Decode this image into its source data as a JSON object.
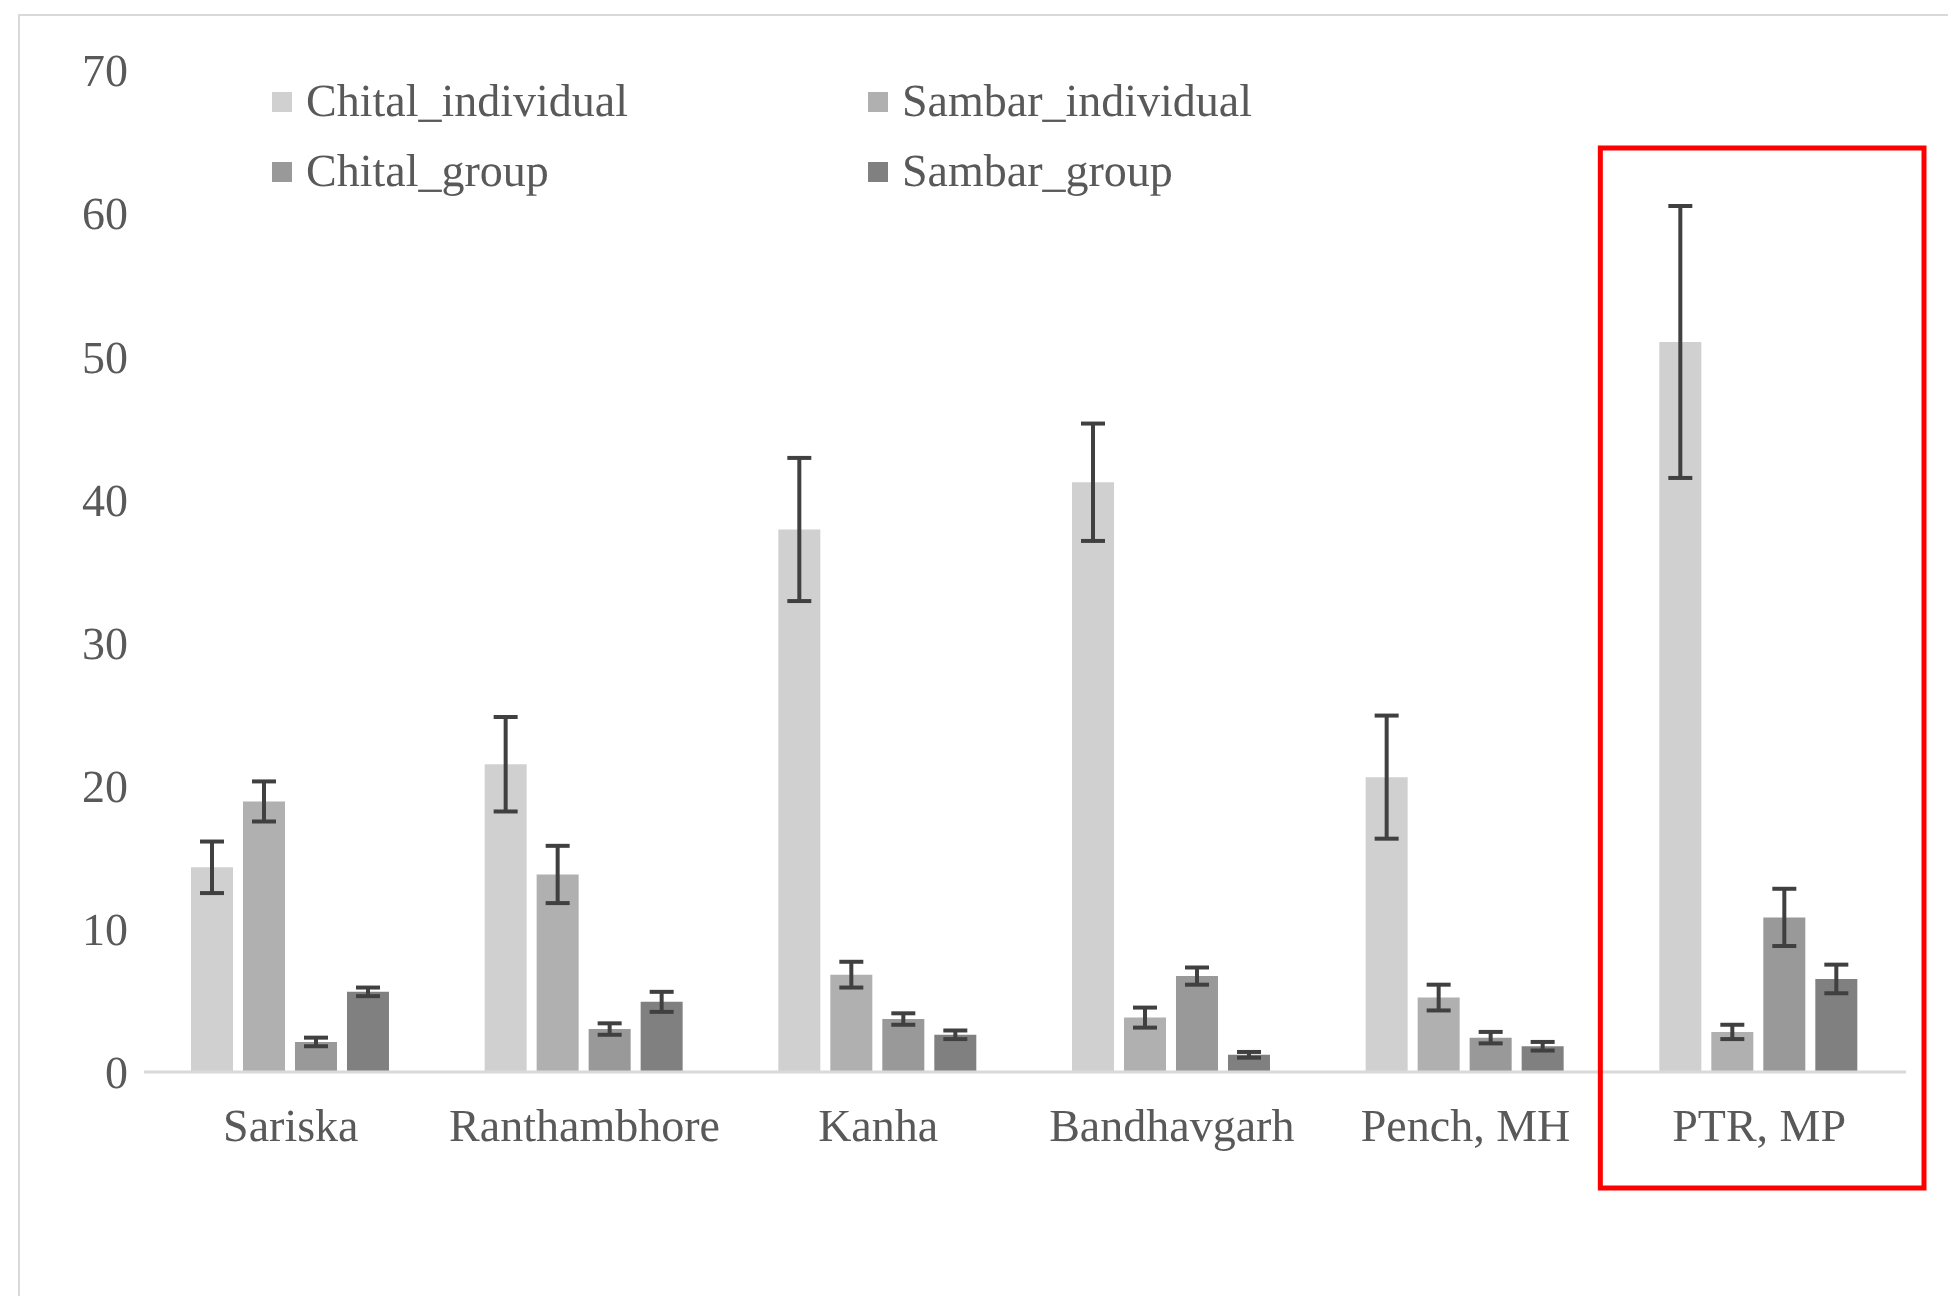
{
  "chart_data": {
    "type": "bar",
    "categories": [
      "Sariska",
      "Ranthambhore",
      "Kanha",
      "Bandhavgarh",
      "Pench, MH",
      "PTR, MP"
    ],
    "series": [
      {
        "name": "Chital_individual",
        "color": "#d0d0d0",
        "values": [
          14.3,
          21.5,
          37.9,
          41.2,
          20.6,
          51.0
        ],
        "errors": [
          1.8,
          3.3,
          5.0,
          4.1,
          4.3,
          9.5
        ]
      },
      {
        "name": "Sambar_individual",
        "color": "#b0b0b0",
        "values": [
          18.9,
          13.8,
          6.8,
          3.8,
          5.2,
          2.8
        ],
        "errors": [
          1.4,
          2.0,
          0.9,
          0.7,
          0.9,
          0.5
        ]
      },
      {
        "name": "Chital_group",
        "color": "#999999",
        "values": [
          2.1,
          3.0,
          3.7,
          6.7,
          2.4,
          10.8
        ],
        "errors": [
          0.3,
          0.4,
          0.4,
          0.6,
          0.4,
          2.0
        ]
      },
      {
        "name": "Sambar_group",
        "color": "#808080",
        "values": [
          5.6,
          4.9,
          2.6,
          1.2,
          1.8,
          6.5
        ],
        "errors": [
          0.3,
          0.7,
          0.3,
          0.2,
          0.3,
          1.0
        ]
      }
    ],
    "ylim": [
      0,
      70
    ],
    "yticks": [
      0,
      10,
      20,
      30,
      40,
      50,
      60,
      70
    ],
    "legend": "top"
  }
}
